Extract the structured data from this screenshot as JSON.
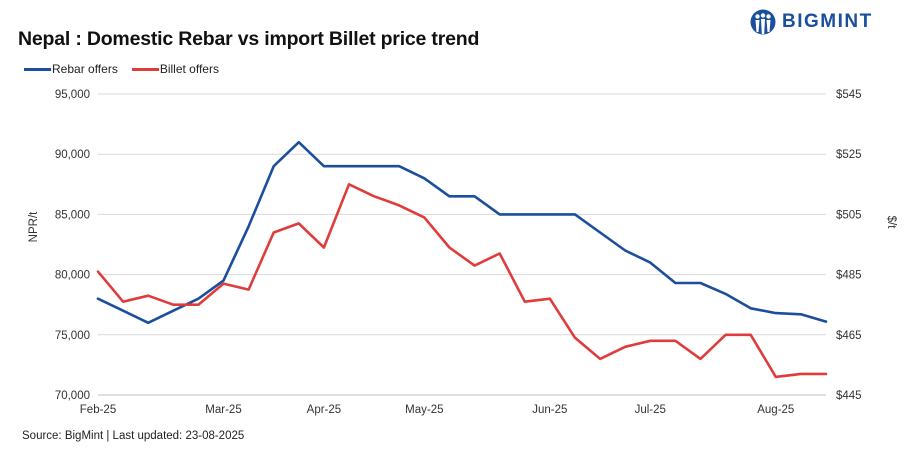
{
  "header": {
    "title": "Nepal : Domestic Rebar vs import Billet price trend",
    "brand": "BIGMINT"
  },
  "source": "Source: BigMint | Last updated: 23-08-2025",
  "colors": {
    "rebar": "#1b4f9c",
    "billet": "#e03c3c",
    "grid": "#d9d9d9",
    "text": "#333333"
  },
  "chart_data": {
    "type": "line",
    "title": "Nepal : Domestic Rebar vs import Billet price trend",
    "ylabel": "NPR/t",
    "y2label": "$/t",
    "ylim": [
      70000,
      95000
    ],
    "y2lim": [
      445,
      545
    ],
    "yticks": [
      "70,000",
      "75,000",
      "80,000",
      "85,000",
      "90,000",
      "95,000"
    ],
    "y2ticks": [
      "$445",
      "$465",
      "$485",
      "$505",
      "$525",
      "$545"
    ],
    "xticks": [
      "Feb-25",
      "Mar-25",
      "Apr-25",
      "May-25",
      "Jun-25",
      "Jul-25",
      "Aug-25"
    ],
    "x_points": 30,
    "grid": true,
    "legend": "top-left",
    "series": [
      {
        "name": "Rebar offers",
        "color": "#1b4f9c",
        "axis": "left",
        "values": [
          78000,
          77000,
          76000,
          77000,
          78000,
          79500,
          84000,
          89000,
          91000,
          89000,
          89000,
          89000,
          89000,
          88000,
          86500,
          86500,
          85000,
          85000,
          85000,
          85000,
          83500,
          82000,
          81000,
          79300,
          79300,
          78400,
          77200,
          76800,
          76700,
          76100
        ]
      },
      {
        "name": "Billet offers",
        "color": "#e03c3c",
        "axis": "right",
        "values": [
          486,
          476,
          478,
          475,
          475,
          482,
          480,
          499,
          502,
          494,
          515,
          511,
          508,
          504,
          494,
          488,
          492,
          476,
          477,
          464,
          457,
          461,
          463,
          463,
          457,
          465,
          465,
          451,
          452,
          452
        ]
      }
    ]
  }
}
